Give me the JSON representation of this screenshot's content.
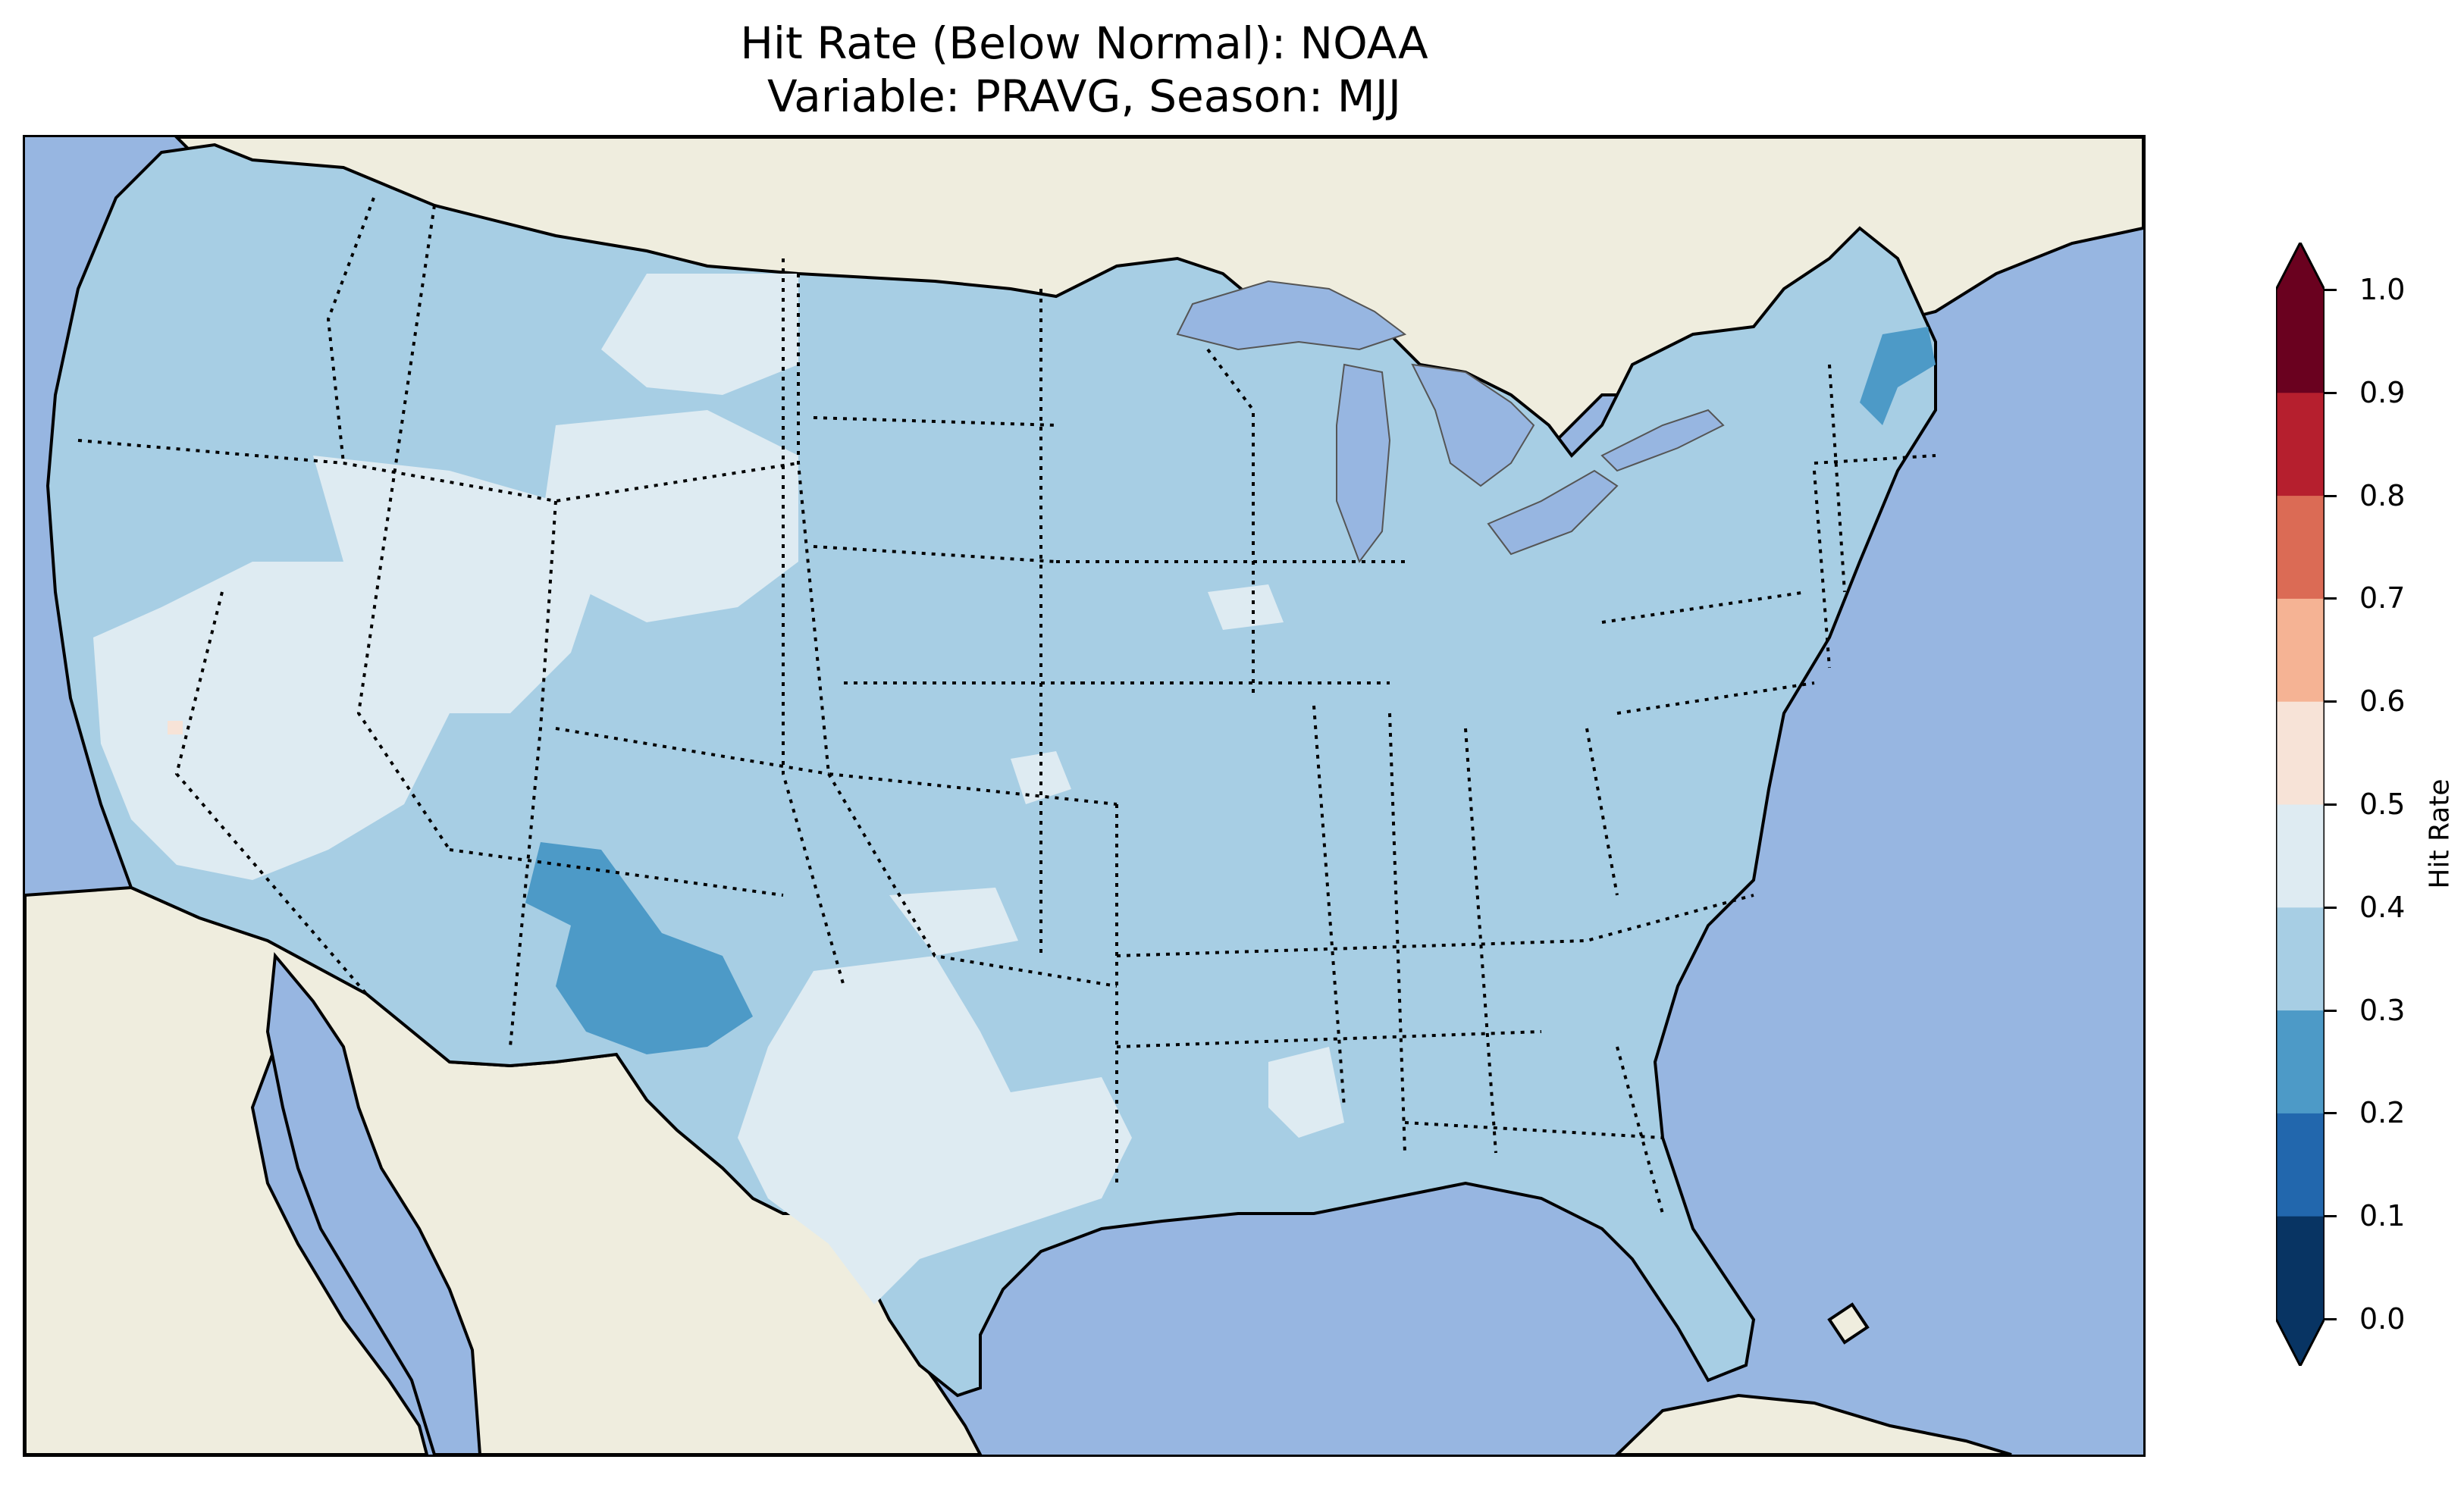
{
  "title": {
    "line1": "Hit Rate (Below Normal): NOAA",
    "line2": "Variable: PRAVG, Season: MJJ"
  },
  "map": {
    "region": "Contiguous United States",
    "ocean_color": "#97b6e1",
    "land_color": "#efedde",
    "lake_color": "#97b6e1",
    "field_colors": {
      "0.2-0.3": "#4d9ac7",
      "0.3-0.4": "#a7cee4",
      "0.4-0.5": "#deebf2",
      "0.5-0.6": "#f7e3d7"
    },
    "predominant_range": "0.3-0.4",
    "notable_regions": [
      {
        "area": "Arizona / New Mexico",
        "range": "0.2-0.3"
      },
      {
        "area": "Southern Maine",
        "range": "0.2-0.3"
      },
      {
        "area": "Texas, Wyoming, Nevada, Utah, Idaho",
        "range": "0.4-0.5"
      },
      {
        "area": "Central California",
        "range": "0.5-0.6"
      }
    ]
  },
  "colorbar": {
    "label": "Hit Rate",
    "extend": "both",
    "ticks": [
      "0.0",
      "0.1",
      "0.2",
      "0.3",
      "0.4",
      "0.5",
      "0.6",
      "0.7",
      "0.8",
      "0.9",
      "1.0"
    ],
    "colors": [
      "#083463",
      "#2267ad",
      "#4d9ac7",
      "#a7cee4",
      "#deebf2",
      "#f7e3d7",
      "#f5b394",
      "#db6b55",
      "#b61f2e",
      "#6a011f"
    ]
  }
}
